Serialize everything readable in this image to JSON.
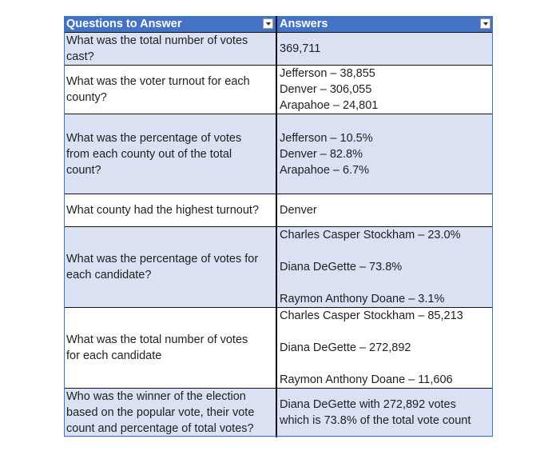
{
  "headers": {
    "questions": "Questions to Answer",
    "answers": "Answers"
  },
  "rows": [
    {
      "question": [
        "What was the total number of votes",
        "cast?"
      ],
      "answer": [
        "369,711"
      ]
    },
    {
      "question": [
        "What was the voter turnout for each",
        "county?"
      ],
      "answer": [
        "Jefferson – 38,855",
        "Denver – 306,055",
        "Arapahoe – 24,801"
      ]
    },
    {
      "question": [
        "What was the percentage of votes",
        "from each county out of the total",
        "count?"
      ],
      "answer": [
        "Jefferson – 10.5%",
        "Denver – 82.8%",
        "Arapahoe – 6.7%"
      ]
    },
    {
      "question": [
        "What county had the highest turnout?"
      ],
      "answer": [
        "Denver"
      ]
    },
    {
      "question": [
        "What was the percentage of votes for",
        "each candidate?"
      ],
      "answer": [
        "Charles Casper Stockham – 23.0%",
        "Diana DeGette – 73.8%",
        "Raymon Anthony Doane – 3.1%"
      ]
    },
    {
      "question": [
        "What was the total number of votes",
        "for each candidate"
      ],
      "answer": [
        "Charles Casper Stockham – 85,213",
        "Diana DeGette – 272,892",
        "Raymon Anthony Doane – 11,606"
      ]
    },
    {
      "question": [
        "Who was the winner of the election",
        "based on the popular vote, their vote",
        "count and percentage of total votes?"
      ],
      "answer": [
        "Diana DeGette with 272,892 votes",
        "which is 73.8% of the total vote count"
      ]
    }
  ]
}
